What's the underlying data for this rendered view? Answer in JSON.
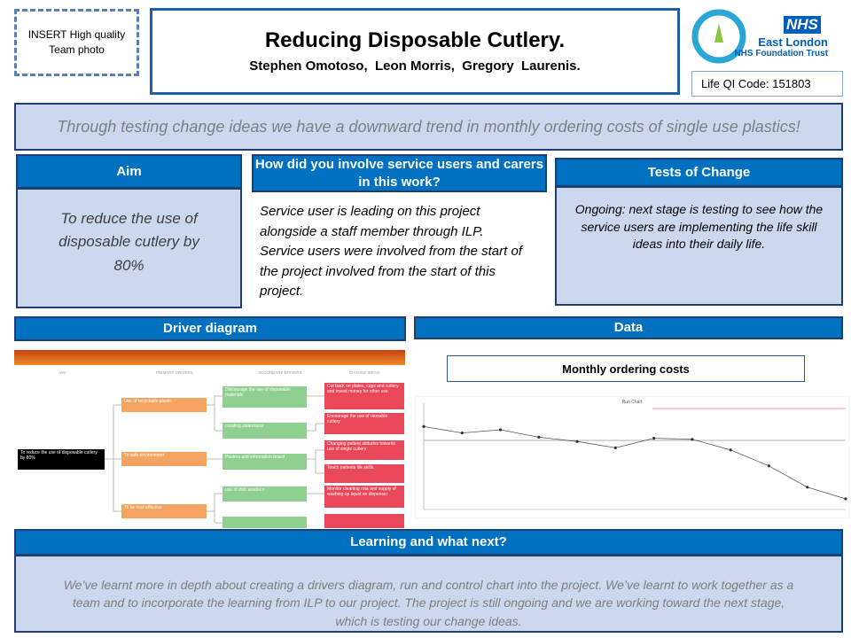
{
  "photo_placeholder": "INSERT High quality Team photo",
  "header": {
    "title": "Reducing Disposable Cutlery.",
    "authors": "Stephen Omotoso,  Leon Morris,  Gregory  Laurenis."
  },
  "logo": {
    "nhs": "NHS",
    "trust_name": "East London",
    "trust_type": "NHS Foundation Trust"
  },
  "life_qi_code": "Life QI Code: 151803",
  "banner": "Through testing change ideas we have a downward trend in monthly ordering costs of single use plastics!",
  "aim": {
    "heading": "Aim",
    "text": "To reduce the use of disposable cutlery by 80%"
  },
  "involvement": {
    "heading": "How did you involve service users and carers in this work?",
    "text": "Service user is leading on this project alongside a staff member through ILP. Service users were involved from the start of the project  involved from the start of  this project."
  },
  "tests_of_change": {
    "heading": "Tests of Change",
    "text": "Ongoing: next stage is testing to see how the service users are  implementing the life skill ideas into their daily life."
  },
  "driver_diagram": {
    "heading": "Driver diagram",
    "columns": [
      "AIM",
      "PRIMARY DRIVERS",
      "SECONDARY DRIVERS",
      "CHANGE IDEAS"
    ],
    "aim": "To reduce the use of disposable cutlery by 80%",
    "primary": [
      "Use of recyclable plastic",
      "To safe environment",
      "To be cost effective"
    ],
    "secondary": [
      "Discourage the use of disposable materials",
      "creating awareness",
      "Posters and information board",
      "use of dish washers"
    ],
    "change_ideas": [
      "Cut back on plates, cups and cutlery and invest money for other use.",
      "Encourage the use of reusable cutlery",
      "Changing patient attitudes towards use of single cutlery",
      "Teach patients life skills.",
      "Monitor cleaning rota and supply of washing up liquid on dispenser"
    ]
  },
  "data_section": {
    "heading": "Data",
    "chart_title": "Monthly ordering costs",
    "run_chart": {
      "title": "Run Chart",
      "ylim": [
        0,
        100
      ],
      "median": 65,
      "target": 95,
      "values": [
        78,
        72,
        75,
        68,
        64,
        58,
        67,
        66,
        56,
        41,
        21,
        10
      ]
    }
  },
  "learning": {
    "heading": "Learning and what next?",
    "text": "We’ve  learnt more in depth about creating a drivers diagram, run and control chart into the project. We’ve learnt to work together as  a team and  to incorporate the learning from ILP to our project. The  project is still ongoing and we are working toward the next stage, which is testing our change ideas."
  }
}
